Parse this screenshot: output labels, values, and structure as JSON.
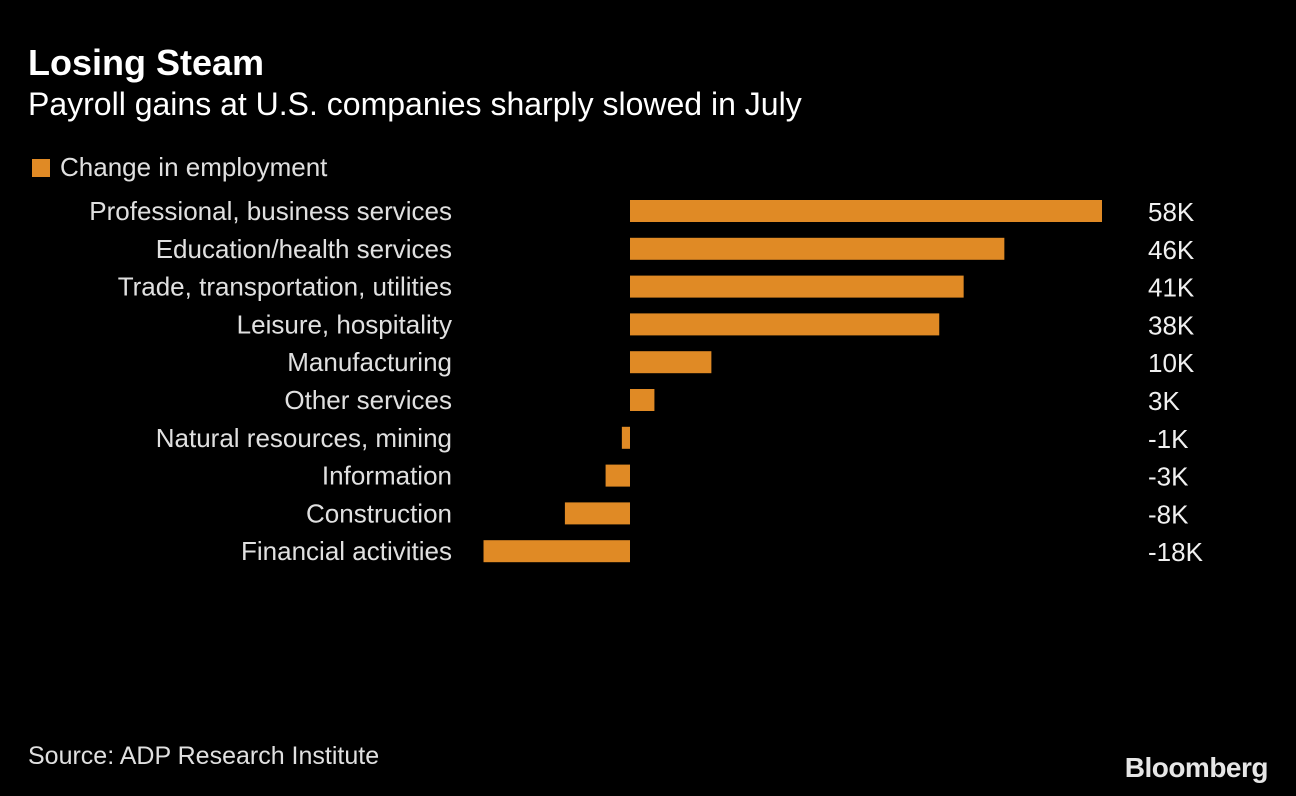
{
  "title": "Losing Steam",
  "subtitle": "Payroll gains at U.S. companies sharply slowed in July",
  "source": "Source: ADP Research Institute",
  "logo": "Bloomberg",
  "colors": {
    "bar": "#E08A25",
    "background": "#000000"
  },
  "chart_data": {
    "type": "bar",
    "orientation": "horizontal",
    "title": "Losing Steam",
    "subtitle": "Payroll gains at U.S. companies sharply slowed in July",
    "legend": "top-left",
    "series": [
      {
        "name": "Change in employment",
        "values": [
          58,
          46,
          41,
          38,
          10,
          3,
          -1,
          -3,
          -8,
          -18
        ]
      }
    ],
    "categories": [
      "Professional, business services",
      "Education/health services",
      "Trade, transportation, utilities",
      "Leisure, hospitality",
      "Manufacturing",
      "Other services",
      "Natural resources, mining",
      "Information",
      "Construction",
      "Financial activities"
    ],
    "data_labels": [
      "58K",
      "46K",
      "41K",
      "38K",
      "10K",
      "3K",
      "-1K",
      "-3K",
      "-8K",
      "-18K"
    ],
    "unit": "thousands",
    "grid": false
  }
}
